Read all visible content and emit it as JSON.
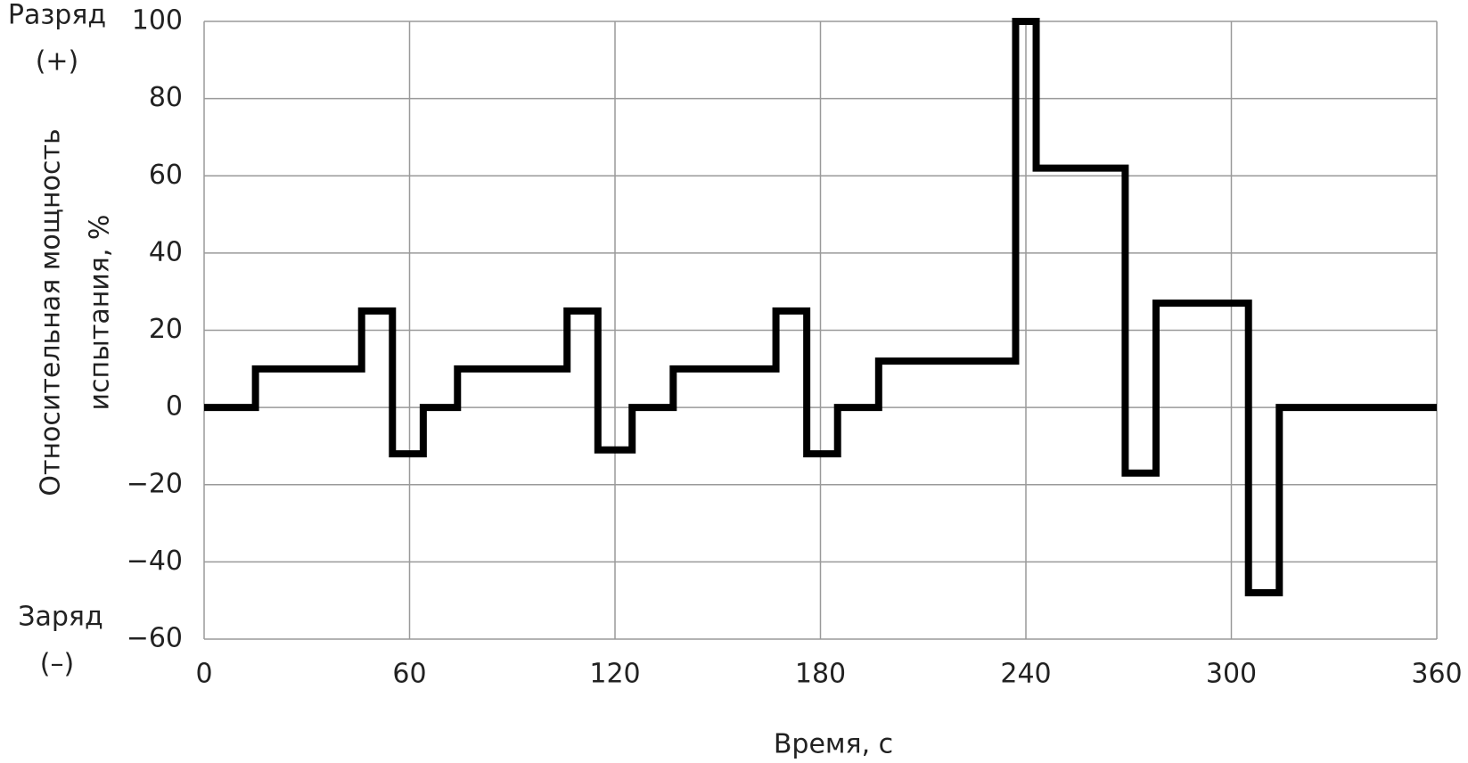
{
  "chart_data": {
    "type": "line",
    "xlabel": "Время, с",
    "ylabel": [
      "Относительная мощность",
      "испытания, %"
    ],
    "annotations": [
      {
        "lines": [
          "Разряд",
          "(+)"
        ],
        "position": "top"
      },
      {
        "lines": [
          "Заряд",
          "(–)"
        ],
        "position": "bottom"
      }
    ],
    "x": [
      0,
      15,
      15,
      46,
      46,
      55,
      55,
      64,
      64,
      74,
      74,
      106,
      106,
      115,
      115,
      125,
      125,
      137,
      137,
      167,
      167,
      176,
      176,
      185,
      185,
      197,
      197,
      237,
      237,
      243,
      243,
      269,
      269,
      278,
      278,
      305,
      305,
      314,
      314,
      360
    ],
    "series": [
      {
        "color": "#000000",
        "values": [
          0,
          0,
          10,
          10,
          25,
          25,
          -12,
          -12,
          0,
          0,
          10,
          10,
          25,
          25,
          -11,
          -11,
          0,
          0,
          10,
          10,
          25,
          25,
          -12,
          -12,
          0,
          0,
          12,
          12,
          100,
          100,
          62,
          62,
          -17,
          -17,
          27,
          27,
          -48,
          -48,
          0,
          0
        ]
      }
    ],
    "xlim": [
      0,
      360
    ],
    "xticks": [
      0,
      60,
      120,
      180,
      240,
      300,
      360
    ],
    "ylim": [
      -60,
      100
    ],
    "yticks": [
      {
        "value": -60,
        "label": "−60"
      },
      {
        "value": -40,
        "label": "−40"
      },
      {
        "value": -20,
        "label": "−20"
      },
      0,
      20,
      40,
      60,
      80,
      100
    ],
    "grid": true
  }
}
